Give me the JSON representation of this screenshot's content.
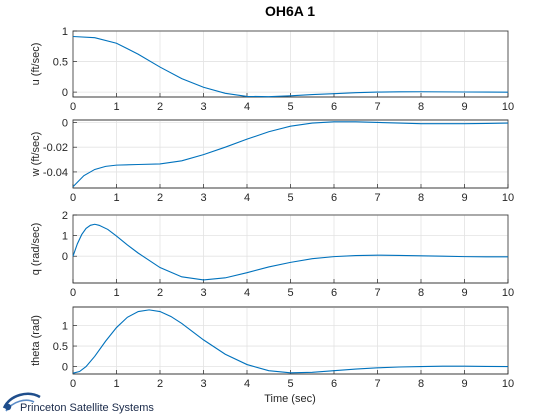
{
  "chart_data": {
    "type": "line",
    "title": "OH6A 1",
    "xlabel": "Time (sec)",
    "xlim": [
      0,
      10
    ],
    "xticks": [
      0,
      1,
      2,
      3,
      4,
      5,
      6,
      7,
      8,
      9,
      10
    ],
    "subplots": [
      {
        "ylabel": "u (ft/sec)",
        "ylim": [
          -0.08,
          1.0
        ],
        "yticks": [
          0,
          0.5,
          1
        ],
        "ytick_labels": [
          "0",
          "0.5",
          "1"
        ],
        "series": [
          {
            "name": "u",
            "x": [
              0,
              0.5,
              1,
              1.5,
              2,
              2.5,
              3,
              3.5,
              4,
              4.5,
              5,
              5.5,
              6,
              6.5,
              7,
              7.5,
              8,
              8.5,
              9,
              9.5,
              10
            ],
            "y": [
              0.91,
              0.89,
              0.8,
              0.62,
              0.41,
              0.22,
              0.08,
              -0.02,
              -0.07,
              -0.075,
              -0.06,
              -0.04,
              -0.025,
              -0.01,
              0.0,
              0.005,
              0.006,
              0.004,
              0.002,
              0.0,
              -0.002
            ]
          }
        ]
      },
      {
        "ylabel": "w (ft/sec)",
        "ylim": [
          -0.053,
          0.002
        ],
        "yticks": [
          0,
          -0.02,
          -0.04
        ],
        "ytick_labels": [
          "0",
          "-0.02",
          "-0.04"
        ],
        "series": [
          {
            "name": "w",
            "x": [
              0,
              0.25,
              0.5,
              0.75,
              1,
              1.5,
              2,
              2.5,
              3,
              3.5,
              4,
              4.5,
              5,
              5.5,
              6,
              6.5,
              7,
              7.5,
              8,
              8.5,
              9,
              9.5,
              10
            ],
            "y": [
              -0.052,
              -0.043,
              -0.038,
              -0.0355,
              -0.0345,
              -0.034,
              -0.0335,
              -0.031,
              -0.026,
              -0.02,
              -0.0135,
              -0.0075,
              -0.003,
              -0.0005,
              0.0005,
              0.0005,
              0.0,
              -0.0005,
              -0.001,
              -0.001,
              -0.001,
              -0.0008,
              -0.0005
            ]
          }
        ]
      },
      {
        "ylabel": "q (rad/sec)",
        "ylim": [
          -1.3,
          2.0
        ],
        "yticks": [
          0,
          1,
          2
        ],
        "ytick_labels": [
          "0",
          "1",
          "2"
        ],
        "series": [
          {
            "name": "q",
            "x": [
              0,
              0.1,
              0.2,
              0.3,
              0.4,
              0.5,
              0.6,
              0.8,
              1,
              1.25,
              1.5,
              2,
              2.5,
              3,
              3.5,
              4,
              4.5,
              5,
              5.5,
              6,
              6.5,
              7,
              7.5,
              8,
              8.5,
              9,
              9.5,
              10
            ],
            "y": [
              0,
              0.6,
              1.05,
              1.35,
              1.5,
              1.55,
              1.5,
              1.3,
              0.98,
              0.55,
              0.15,
              -0.55,
              -1.0,
              -1.15,
              -1.05,
              -0.8,
              -0.52,
              -0.3,
              -0.12,
              -0.02,
              0.03,
              0.05,
              0.04,
              0.02,
              0.0,
              -0.02,
              -0.03,
              -0.03
            ]
          }
        ]
      },
      {
        "ylabel": "theta (rad)",
        "ylim": [
          -0.18,
          1.45
        ],
        "yticks": [
          0,
          0.5,
          1
        ],
        "ytick_labels": [
          "0",
          "0.5",
          "1"
        ],
        "series": [
          {
            "name": "theta",
            "x": [
              0,
              0.15,
              0.3,
              0.5,
              0.75,
              1,
              1.25,
              1.5,
              1.75,
              2,
              2.25,
              2.5,
              3,
              3.5,
              4,
              4.5,
              5,
              5.5,
              6,
              6.5,
              7,
              7.5,
              8,
              8.5,
              9,
              9.5,
              10
            ],
            "y": [
              -0.16,
              -0.12,
              0.0,
              0.25,
              0.62,
              0.95,
              1.2,
              1.34,
              1.38,
              1.34,
              1.22,
              1.05,
              0.65,
              0.3,
              0.05,
              -0.1,
              -0.15,
              -0.14,
              -0.1,
              -0.06,
              -0.03,
              -0.01,
              0.0,
              0.01,
              0.01,
              0.005,
              0.0
            ]
          }
        ]
      }
    ]
  },
  "logo": {
    "text": "Princeton Satellite Systems",
    "accent_color": "#1f4e8c"
  },
  "colors": {
    "series": "#0072bd",
    "grid": "#e3e3e3",
    "axes": "#262626"
  }
}
